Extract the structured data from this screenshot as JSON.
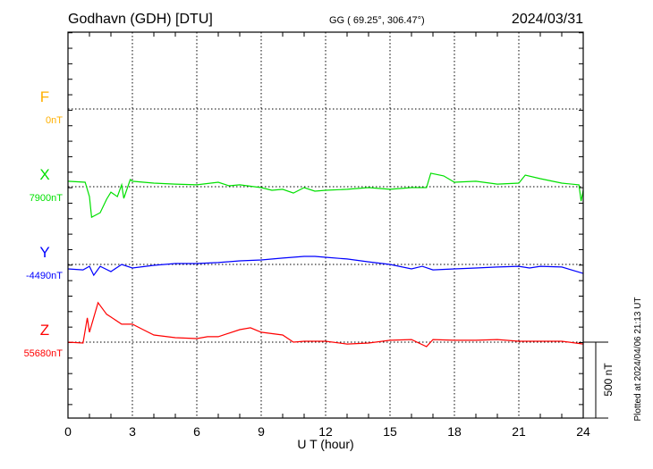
{
  "header": {
    "station": "Godhavn (GDH)  [DTU]",
    "coords": "GG ( 69.25°, 306.47°)",
    "date": "2024/03/31"
  },
  "footer": {
    "plotted": "Plotted at 2024/04/06 21:13 UT",
    "scale_label": "500 nT"
  },
  "chart_data": {
    "type": "line",
    "title": "Godhavn (GDH) [DTU]",
    "xlabel": "U T (hour)",
    "xlim": [
      0,
      24
    ],
    "xticks": [
      "0",
      "3",
      "6",
      "9",
      "12",
      "15",
      "18",
      "21",
      "24"
    ],
    "scale_bar_nT": 500,
    "grid": true,
    "series": [
      {
        "name": "F",
        "color": "#ffb000",
        "baseline_label": "0nT",
        "baseline": 0,
        "x": [],
        "offsets": []
      },
      {
        "name": "X",
        "color": "#00e000",
        "baseline_label": "7900nT",
        "baseline": 7900,
        "x": [
          0,
          0.8,
          1.0,
          1.1,
          1.5,
          1.8,
          2.0,
          2.3,
          2.5,
          2.6,
          2.9,
          3,
          4,
          5,
          6,
          7,
          7.5,
          8,
          9,
          9.5,
          10,
          10.5,
          11,
          11.5,
          12,
          13,
          14,
          15,
          16,
          16.7,
          16.9,
          17.5,
          18,
          19,
          20,
          21,
          21.3,
          22,
          23,
          23.8,
          23.9,
          24
        ],
        "offsets": [
          35,
          29,
          -64,
          -197,
          -168,
          -81,
          -35,
          -64,
          12,
          -75,
          46,
          35,
          23,
          17,
          12,
          29,
          6,
          12,
          -6,
          -23,
          -17,
          -41,
          -6,
          -29,
          -23,
          -17,
          -6,
          -17,
          -6,
          -6,
          87,
          70,
          29,
          35,
          17,
          23,
          75,
          52,
          23,
          12,
          -93,
          -23
        ]
      },
      {
        "name": "Y",
        "color": "#0000ff",
        "baseline_label": "-4490nT",
        "baseline": -4490,
        "x": [
          0,
          0.7,
          1,
          1.2,
          1.5,
          2,
          2.5,
          3,
          4,
          5,
          6,
          7,
          8,
          9,
          10,
          11,
          11.5,
          12,
          13,
          14,
          15,
          16,
          16.5,
          17,
          18,
          19,
          20,
          21,
          21.5,
          22,
          23,
          24
        ],
        "offsets": [
          -29,
          -35,
          -12,
          -70,
          -12,
          -46,
          0,
          -23,
          -6,
          6,
          6,
          12,
          23,
          29,
          41,
          52,
          52,
          46,
          35,
          17,
          0,
          -29,
          -12,
          -35,
          -29,
          -23,
          -17,
          -12,
          -23,
          -12,
          -17,
          -58
        ]
      },
      {
        "name": "Z",
        "color": "#ff0000",
        "baseline_label": "55680nT",
        "baseline": 55680,
        "x": [
          0,
          0.7,
          0.9,
          1.0,
          1.4,
          1.8,
          2,
          2.5,
          3,
          3.5,
          4,
          5,
          6,
          6.5,
          7,
          8,
          8.5,
          9,
          10,
          10.5,
          11,
          12,
          13,
          14,
          15,
          16,
          16.7,
          17,
          18,
          19,
          20,
          21,
          22,
          23,
          24
        ],
        "offsets": [
          0,
          -6,
          157,
          64,
          255,
          180,
          162,
          116,
          116,
          81,
          46,
          29,
          23,
          35,
          35,
          81,
          93,
          64,
          46,
          0,
          6,
          6,
          -12,
          -6,
          12,
          17,
          -29,
          17,
          12,
          12,
          17,
          6,
          6,
          6,
          -12
        ]
      }
    ]
  }
}
